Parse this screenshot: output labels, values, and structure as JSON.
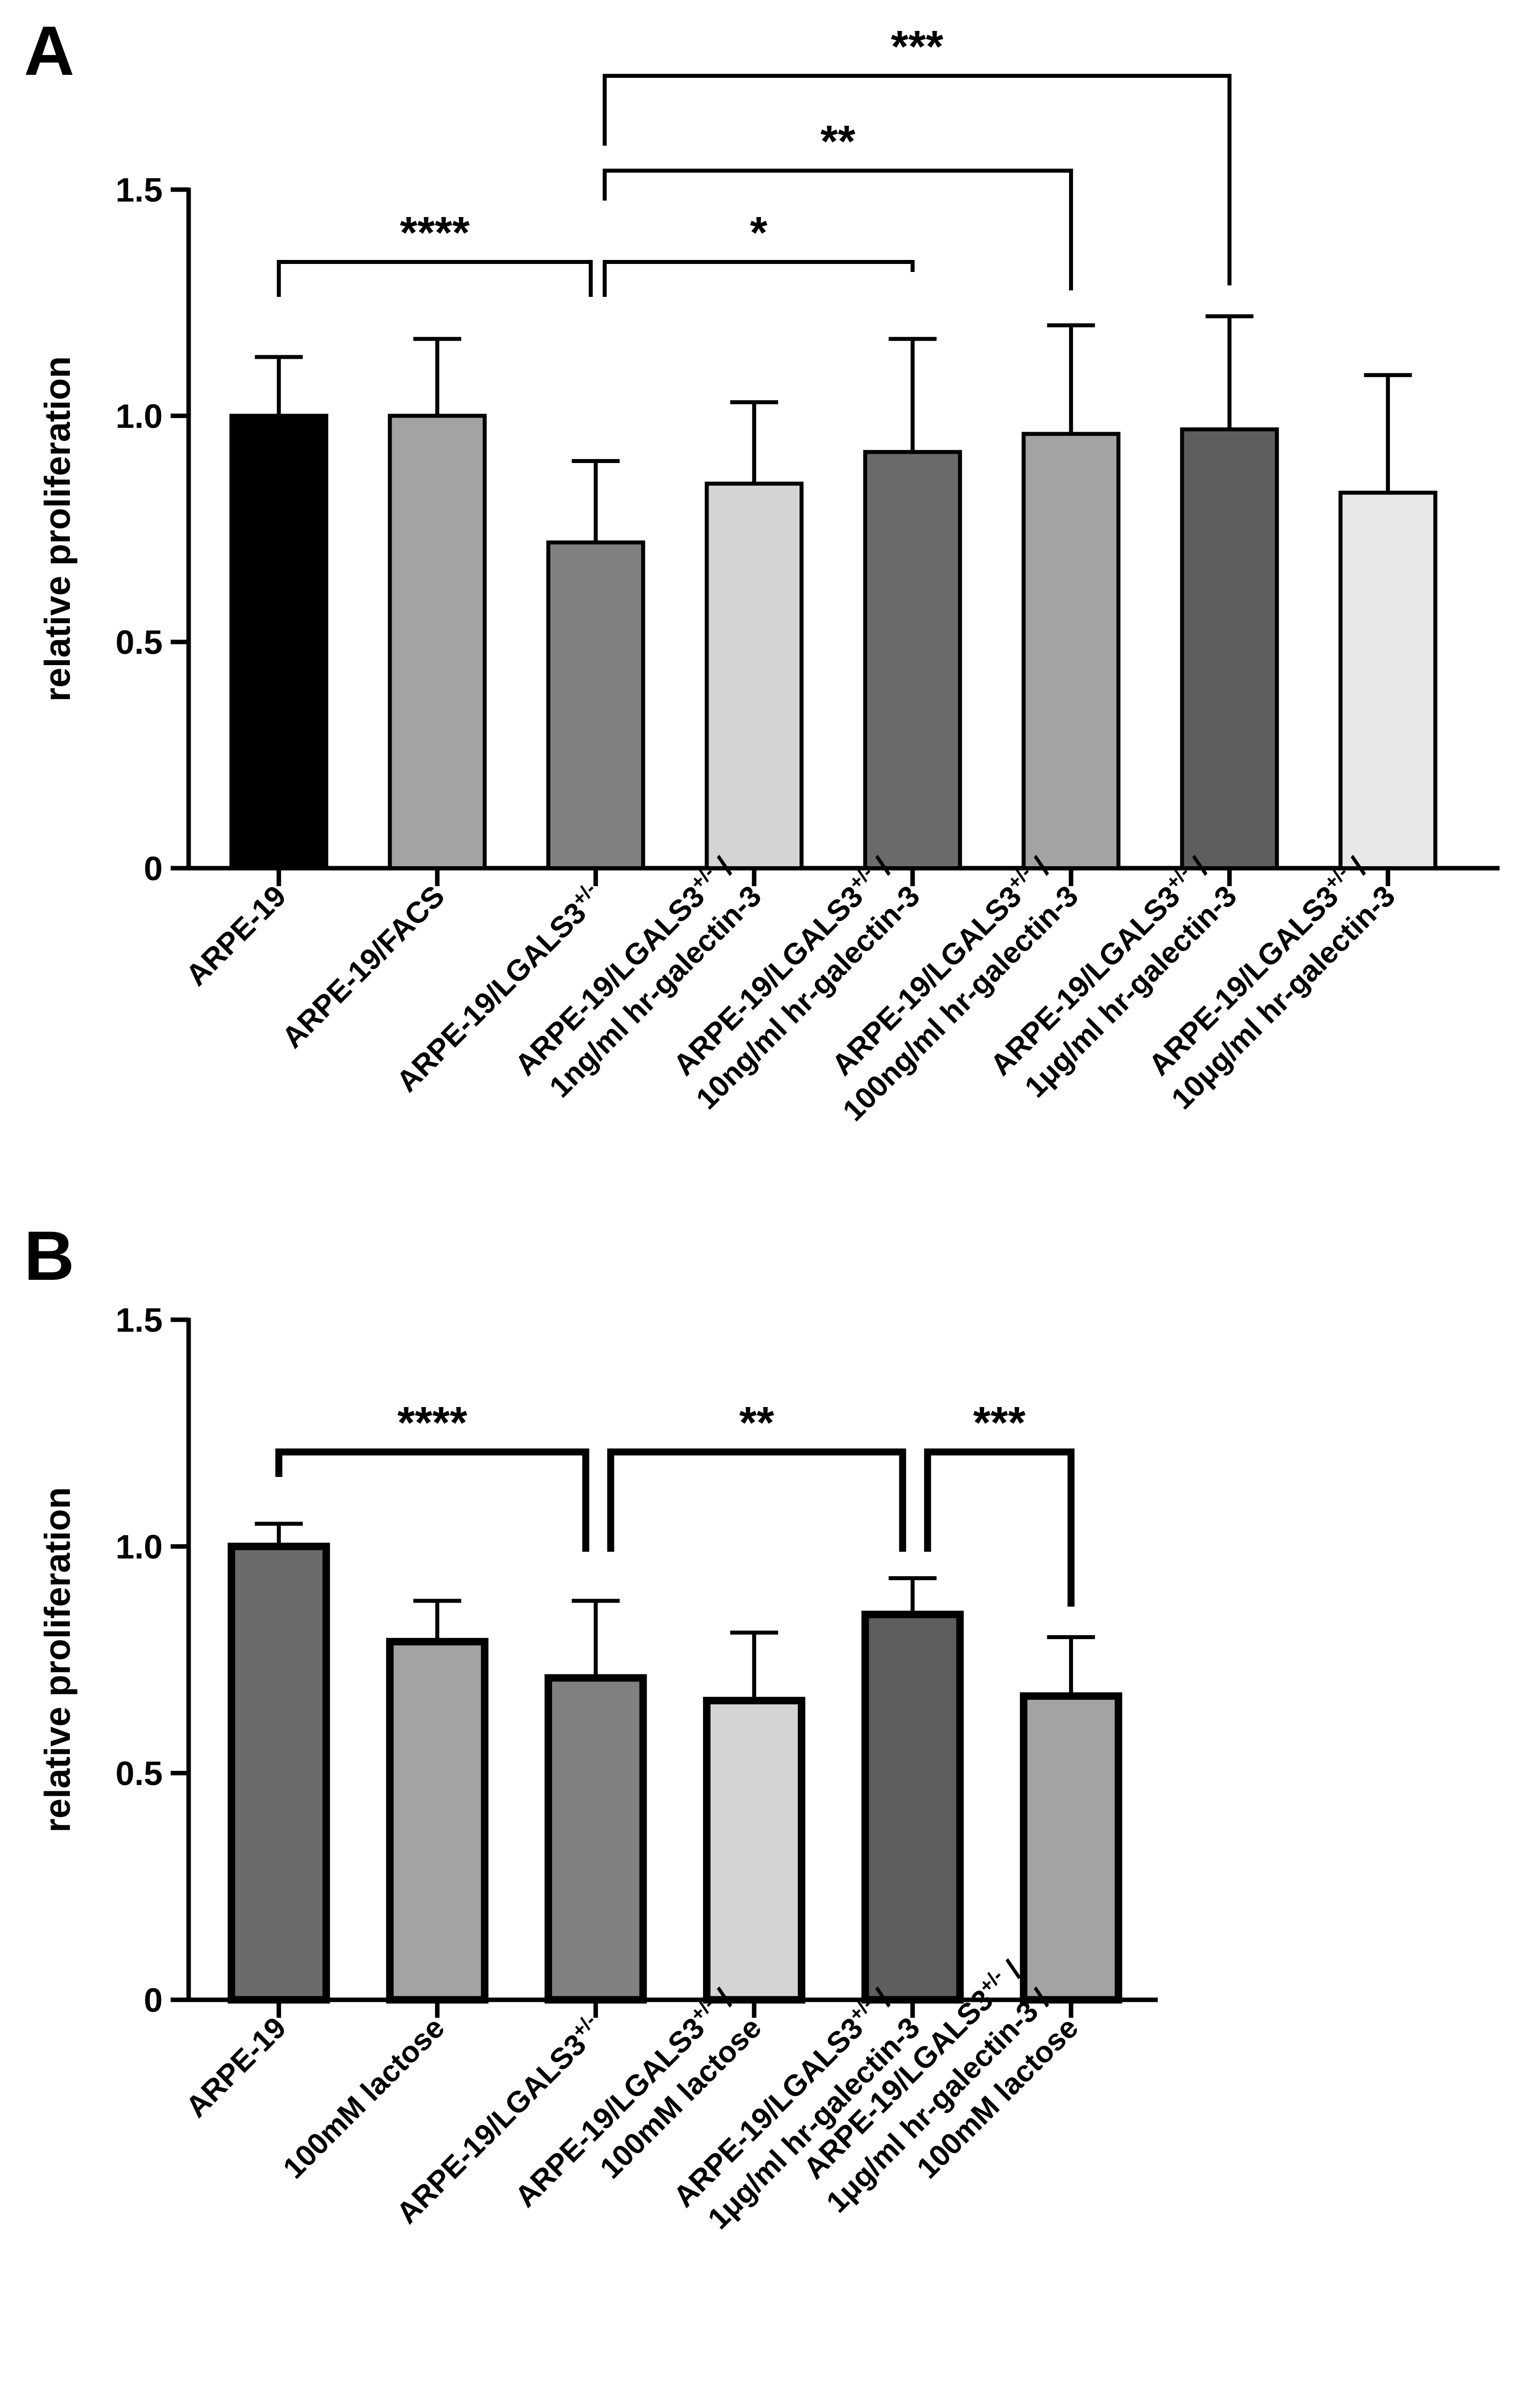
{
  "figure": {
    "panels": [
      "A",
      "B"
    ]
  },
  "chart_data": [
    {
      "panel": "A",
      "type": "bar",
      "ylabel": "relative proliferation",
      "ylim": [
        0,
        1.5
      ],
      "yticks": [
        "0",
        "0.5",
        "1.0",
        "1.5"
      ],
      "grid": false,
      "categories": [
        {
          "line1": "ARPE-19",
          "sup": "",
          "line2": ""
        },
        {
          "line1": "ARPE-19/FACS",
          "sup": "",
          "line2": ""
        },
        {
          "line1": "ARPE-19/LGALS3",
          "sup": "+/-",
          "line2": ""
        },
        {
          "line1": "ARPE-19/LGALS3",
          "sup": "+/-",
          "after": " /",
          "line2": "1ng/ml hr-galectin-3"
        },
        {
          "line1": "ARPE-19/LGALS3",
          "sup": "+/-",
          "after": " /",
          "line2": "10ng/ml hr-galectin-3"
        },
        {
          "line1": "ARPE-19/LGALS3",
          "sup": "+/-",
          "after": " /",
          "line2": "100ng/ml hr-galectin-3"
        },
        {
          "line1": "ARPE-19/LGALS3",
          "sup": "+/-",
          "after": " /",
          "line2": "1μg/ml hr-galectin-3"
        },
        {
          "line1": "ARPE-19/LGALS3",
          "sup": "+/-",
          "after": " /",
          "line2": "10μg/ml hr-galectin-3"
        }
      ],
      "values": [
        1.0,
        1.0,
        0.72,
        0.85,
        0.92,
        0.96,
        0.97,
        0.83
      ],
      "errors": [
        0.13,
        0.17,
        0.18,
        0.18,
        0.25,
        0.24,
        0.25,
        0.26
      ],
      "colors": [
        "#000000",
        "#a3a3a3",
        "#808080",
        "#d4d4d4",
        "#6b6b6b",
        "#a3a3a3",
        "#5e5e5e",
        "#e8e8e8"
      ],
      "significance": [
        {
          "from": 0,
          "to": 2,
          "label": "****"
        },
        {
          "from": 2,
          "to": 4,
          "label": "*"
        },
        {
          "from": 2,
          "to": 5,
          "label": "**"
        },
        {
          "from": 2,
          "to": 6,
          "label": "***"
        }
      ]
    },
    {
      "panel": "B",
      "type": "bar",
      "ylabel": "relative proliferation",
      "ylim": [
        0,
        1.5
      ],
      "yticks": [
        "0",
        "0.5",
        "1.0",
        "1.5"
      ],
      "grid": false,
      "categories": [
        {
          "line1": "ARPE-19",
          "sup": "",
          "line2": ""
        },
        {
          "line1": "100mM lactose",
          "sup": "",
          "line2": ""
        },
        {
          "line1": "ARPE-19/LGALS3",
          "sup": "+/-",
          "line2": ""
        },
        {
          "line1": "ARPE-19/LGALS3",
          "sup": "+/-",
          "after": " /",
          "line2": "100mM lactose"
        },
        {
          "line1": "ARPE-19/LGALS3",
          "sup": "+/-",
          "after": " /",
          "line2": "1μg/ml hr-galectin-3"
        },
        {
          "line1": "ARPE-19/LGALS3",
          "sup": "+/-",
          "after": " /",
          "line2": "1μg/ml hr-galectin-3 /",
          "line3": "100mM lactose"
        }
      ],
      "values": [
        1.0,
        0.79,
        0.71,
        0.66,
        0.85,
        0.67
      ],
      "errors": [
        0.05,
        0.09,
        0.17,
        0.15,
        0.08,
        0.13
      ],
      "colors": [
        "#6b6b6b",
        "#a3a3a3",
        "#808080",
        "#d4d4d4",
        "#5e5e5e",
        "#a3a3a3"
      ],
      "significance": [
        {
          "from": 0,
          "to": 2,
          "label": "****"
        },
        {
          "from": 2,
          "to": 4,
          "label": "**"
        },
        {
          "from": 4,
          "to": 5,
          "label": "***"
        }
      ]
    }
  ]
}
